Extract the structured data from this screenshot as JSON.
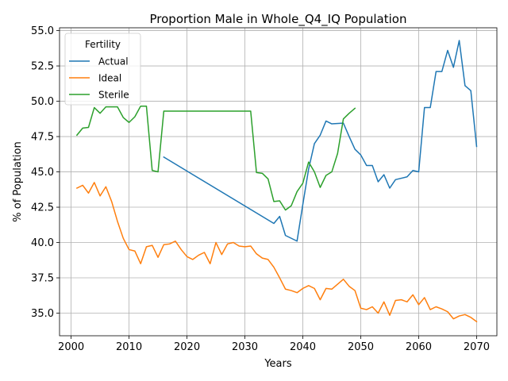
{
  "chart_data": {
    "type": "line",
    "title": "Proportion Male in Whole_Q4_IQ Population",
    "xlabel": "Years",
    "ylabel": "% of Population",
    "xlim": [
      1998,
      2073.5
    ],
    "ylim": [
      33.4,
      55.2
    ],
    "x_ticks": [
      2000,
      2010,
      2020,
      2030,
      2040,
      2050,
      2060,
      2070
    ],
    "x_tick_labels": [
      "2000",
      "2010",
      "2020",
      "2030",
      "2040",
      "2050",
      "2060",
      "2070"
    ],
    "y_ticks": [
      35.0,
      37.5,
      40.0,
      42.5,
      45.0,
      47.5,
      50.0,
      52.5,
      55.0
    ],
    "y_tick_labels": [
      "35.0",
      "37.5",
      "40.0",
      "42.5",
      "45.0",
      "47.5",
      "50.0",
      "52.5",
      "55.0"
    ],
    "grid": true,
    "legend": {
      "title": "Fertility",
      "placement": "upper-left"
    },
    "series": [
      {
        "name": "Actual",
        "color": "#1f77b4",
        "x": [
          2016,
          2035,
          2036,
          2037,
          2039,
          2040,
          2041,
          2042,
          2043,
          2044,
          2045,
          2047,
          2048,
          2049,
          2050,
          2051,
          2052,
          2053,
          2054,
          2055,
          2056,
          2058,
          2059,
          2060,
          2061,
          2062,
          2063,
          2064,
          2065,
          2066,
          2067,
          2068,
          2069,
          2070
        ],
        "values": [
          46.05,
          41.35,
          41.85,
          40.5,
          40.1,
          42.7,
          45.2,
          47.0,
          47.6,
          48.6,
          48.4,
          48.45,
          47.5,
          46.6,
          46.2,
          45.45,
          45.45,
          44.3,
          44.8,
          43.85,
          44.45,
          44.65,
          45.1,
          45.0,
          49.55,
          49.55,
          52.1,
          52.1,
          53.6,
          52.4,
          54.3,
          51.1,
          50.75,
          46.8
        ]
      },
      {
        "name": "Ideal",
        "color": "#ff7f0e",
        "x": [
          2001,
          2002,
          2003,
          2004,
          2005,
          2006,
          2007,
          2008,
          2009,
          2010,
          2011,
          2012,
          2013,
          2014,
          2015,
          2016,
          2017,
          2018,
          2019,
          2020,
          2021,
          2022,
          2023,
          2024,
          2025,
          2026,
          2027,
          2028,
          2029,
          2030,
          2031,
          2032,
          2033,
          2034,
          2035,
          2036,
          2037,
          2038,
          2039,
          2040,
          2041,
          2042,
          2043,
          2044,
          2045,
          2046,
          2047,
          2048,
          2049,
          2050,
          2051,
          2052,
          2053,
          2054,
          2055,
          2056,
          2057,
          2058,
          2059,
          2060,
          2061,
          2062,
          2063,
          2064,
          2065,
          2066,
          2067,
          2068,
          2069,
          2070
        ],
        "values": [
          43.85,
          44.05,
          43.5,
          44.25,
          43.3,
          43.95,
          42.9,
          41.5,
          40.3,
          39.5,
          39.4,
          38.5,
          39.7,
          39.8,
          38.95,
          39.85,
          39.9,
          40.1,
          39.5,
          39.0,
          38.8,
          39.1,
          39.3,
          38.5,
          40.0,
          39.15,
          39.9,
          40.0,
          39.75,
          39.7,
          39.75,
          39.2,
          38.9,
          38.8,
          38.25,
          37.5,
          36.7,
          36.6,
          36.45,
          36.75,
          36.95,
          36.75,
          35.95,
          36.75,
          36.7,
          37.05,
          37.4,
          36.9,
          36.6,
          35.35,
          35.25,
          35.45,
          35.0,
          35.8,
          34.85,
          35.9,
          35.95,
          35.8,
          36.3,
          35.6,
          36.1,
          35.25,
          35.45,
          35.3,
          35.1,
          34.6,
          34.8,
          34.9,
          34.7,
          34.4
        ]
      },
      {
        "name": "Sterile",
        "color": "#2ca02c",
        "x": [
          2001,
          2002,
          2003,
          2004,
          2005,
          2006,
          2007,
          2008,
          2009,
          2010,
          2011,
          2012,
          2013,
          2014,
          2015,
          2016,
          2031,
          2032,
          2033,
          2034,
          2035,
          2036,
          2037,
          2038,
          2039,
          2040,
          2041,
          2042,
          2043,
          2044,
          2045,
          2046,
          2047,
          2048,
          2049
        ],
        "values": [
          47.6,
          48.1,
          48.15,
          49.55,
          49.15,
          49.6,
          49.6,
          49.6,
          48.85,
          48.5,
          48.9,
          49.65,
          49.65,
          45.1,
          45.0,
          49.3,
          49.3,
          44.95,
          44.9,
          44.5,
          42.9,
          42.95,
          42.3,
          42.6,
          43.6,
          44.2,
          45.7,
          45.0,
          43.9,
          44.75,
          45.0,
          46.3,
          48.75,
          49.15,
          49.5
        ]
      }
    ]
  }
}
